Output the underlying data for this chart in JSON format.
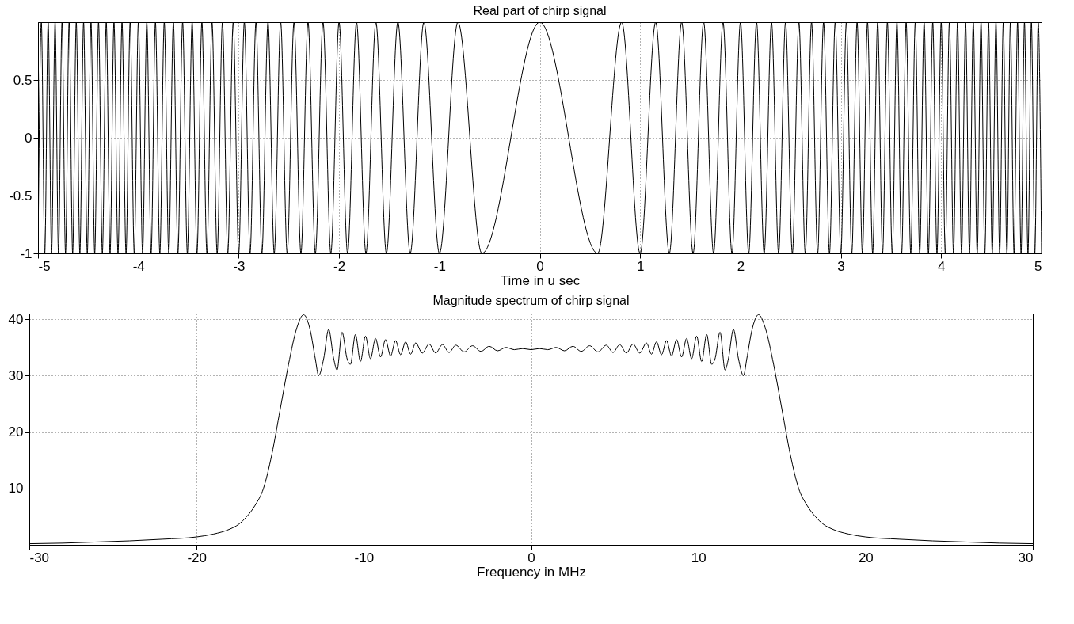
{
  "chart_data": [
    {
      "type": "line",
      "title": "Real part of chirp signal",
      "xlabel": "Time in u sec",
      "xlim": [
        -5,
        5
      ],
      "xticks": [
        -5,
        -4,
        -3,
        -2,
        -1,
        0,
        1,
        2,
        3,
        4,
        5
      ],
      "ylim": [
        -1,
        1
      ],
      "yticks": [
        -1,
        -0.5,
        0,
        0.5
      ],
      "grid": true,
      "x": [
        -5,
        -4.967,
        -4.933,
        -4.899,
        -4.865,
        -4.83,
        -4.796,
        -4.761,
        -4.726,
        -4.69,
        -4.655,
        -4.619,
        -4.583,
        -4.546,
        -4.509,
        -4.472,
        -4.435,
        -4.397,
        -4.359,
        -4.32,
        -4.282,
        -4.243,
        -4.203,
        -4.163,
        -4.123,
        -4.082,
        -4.041,
        -4,
        -3.958,
        -3.916,
        -3.873,
        -3.83,
        -3.786,
        -3.742,
        -3.697,
        -3.651,
        -3.606,
        -3.559,
        -3.512,
        -3.464,
        -3.416,
        -3.367,
        -3.317,
        -3.266,
        -3.215,
        -3.162,
        -3.109,
        -3.055,
        -3,
        -2.944,
        -2.887,
        -2.828,
        -2.769,
        -2.708,
        -2.646,
        -2.582,
        -2.517,
        -2.449,
        -2.38,
        -2.309,
        -2.236,
        -2.16,
        -2.082,
        -2,
        -1.915,
        -1.826,
        -1.732,
        -1.633,
        -1.528,
        -1.414,
        -1.291,
        -1.155,
        -1,
        -0.816,
        -0.577,
        0,
        0.577,
        0.816,
        1,
        1.155,
        1.291,
        1.414,
        1.528,
        1.633,
        1.732,
        1.826,
        1.915,
        2,
        2.082,
        2.16,
        2.236,
        2.309,
        2.38,
        2.449,
        2.517,
        2.582,
        2.646,
        2.708,
        2.769,
        2.828,
        2.887,
        2.944,
        3,
        3.055,
        3.109,
        3.162,
        3.215,
        3.266,
        3.317,
        3.367,
        3.416,
        3.464,
        3.512,
        3.559,
        3.606,
        3.651,
        3.697,
        3.742,
        3.786,
        3.83,
        3.873,
        3.916,
        3.958,
        4,
        4.041,
        4.082,
        4.123,
        4.163,
        4.203,
        4.243,
        4.282,
        4.32,
        4.359,
        4.397,
        4.435,
        4.472,
        4.509,
        4.546,
        4.583,
        4.619,
        4.655,
        4.69,
        4.726,
        4.761,
        4.796,
        4.83,
        4.865,
        4.899,
        4.933,
        4.967,
        5
      ],
      "series": [
        {
          "color": "#000000",
          "values": [
            -1,
            1,
            -1,
            1,
            -1,
            1,
            -1,
            1,
            -1,
            1,
            -1,
            1,
            -1,
            1,
            -1,
            1,
            -1,
            1,
            -1,
            1,
            -1,
            1,
            -1,
            1,
            -1,
            1,
            -1,
            1,
            -1,
            1,
            -1,
            1,
            -1,
            1,
            -1,
            1,
            -1,
            1,
            -1,
            1,
            -1,
            1,
            -1,
            1,
            -1,
            1,
            -1,
            1,
            -1,
            1,
            -1,
            1,
            -1,
            1,
            -1,
            1,
            -1,
            1,
            -1,
            1,
            -1,
            1,
            -1,
            1,
            -1,
            1,
            -1,
            1,
            -1,
            1,
            -1,
            1,
            -1,
            1,
            -1,
            1,
            -1,
            1,
            -1,
            1,
            -1,
            1,
            -1,
            1,
            -1,
            1,
            -1,
            1,
            -1,
            1,
            -1,
            1,
            -1,
            1,
            -1,
            1,
            -1,
            1,
            -1,
            1,
            -1,
            1,
            -1,
            1,
            -1,
            1,
            -1,
            1,
            -1,
            1,
            -1,
            1,
            -1,
            1,
            -1,
            1,
            -1,
            1,
            -1,
            1,
            -1,
            1,
            -1,
            1,
            -1,
            1,
            -1,
            1,
            -1,
            1,
            -1,
            1,
            -1,
            1,
            -1,
            1,
            -1,
            1,
            -1,
            1,
            -1,
            1,
            -1,
            1,
            -1,
            1,
            -1,
            1,
            -1,
            1,
            -1
          ]
        }
      ]
    },
    {
      "type": "line",
      "title": "Magnitude spectrum of chirp signal",
      "xlabel": "Frequency in MHz",
      "xlim": [
        -30,
        30
      ],
      "xticks": [
        -30,
        -20,
        -10,
        0,
        10,
        20,
        30
      ],
      "ylim": [
        0,
        41
      ],
      "yticks": [
        10,
        20,
        30,
        40
      ],
      "grid": true,
      "x": [
        -30,
        -28,
        -26,
        -24,
        -22,
        -20,
        -19,
        -18,
        -17.5,
        -17,
        -16.5,
        -16,
        -15.5,
        -15,
        -14.5,
        -14,
        -13.6,
        -13.2,
        -12.9,
        -12.7,
        -12.4,
        -12.1,
        -11.8,
        -11.6,
        -11.3,
        -11,
        -10.8,
        -10.5,
        -10.2,
        -9.9,
        -9.6,
        -9.3,
        -9,
        -8.7,
        -8.4,
        -8.1,
        -7.8,
        -7.5,
        -7.2,
        -6.9,
        -6.5,
        -6.1,
        -5.7,
        -5.3,
        -4.9,
        -4.5,
        -4,
        -3.5,
        -3,
        -2.5,
        -2,
        -1.5,
        -1,
        -0.5,
        0,
        0.5,
        1,
        1.5,
        2,
        2.5,
        3,
        3.5,
        4,
        4.5,
        4.9,
        5.3,
        5.7,
        6.1,
        6.5,
        6.9,
        7.2,
        7.5,
        7.8,
        8.1,
        8.4,
        8.7,
        9,
        9.3,
        9.6,
        9.9,
        10.2,
        10.5,
        10.8,
        11,
        11.3,
        11.6,
        11.8,
        12.1,
        12.4,
        12.7,
        12.9,
        13.2,
        13.6,
        14,
        14.5,
        15,
        15.5,
        16,
        16.5,
        17,
        17.5,
        18,
        19,
        20,
        22,
        24,
        26,
        28,
        30
      ],
      "series": [
        {
          "color": "#000000",
          "values": [
            0.2,
            0.3,
            0.5,
            0.7,
            1,
            1.4,
            1.9,
            2.8,
            3.6,
            5,
            7,
            10,
            16,
            24,
            32,
            38.5,
            40.8,
            38,
            33,
            30,
            33,
            38.2,
            33,
            31,
            37.7,
            33,
            32,
            37.3,
            32.5,
            37,
            33,
            36.6,
            33.3,
            36.4,
            33.5,
            36.2,
            33.7,
            36,
            33.8,
            35.8,
            34,
            35.6,
            34,
            35.5,
            34.1,
            35.4,
            34.2,
            35.3,
            34.3,
            35.2,
            34.4,
            35,
            34.6,
            34.8,
            34.6,
            34.8,
            34.6,
            35,
            34.4,
            35.2,
            34.3,
            35.3,
            34.2,
            35.4,
            34.1,
            35.5,
            34,
            35.6,
            34,
            35.8,
            33.8,
            36,
            33.7,
            36.2,
            33.5,
            36.4,
            33.3,
            36.6,
            33,
            37,
            32.5,
            37.3,
            32,
            33,
            37.7,
            31,
            33,
            38.2,
            33,
            30,
            33,
            38,
            40.8,
            38.5,
            32,
            24,
            16,
            10,
            7,
            5,
            3.6,
            2.8,
            1.9,
            1.4,
            1,
            0.7,
            0.5,
            0.3,
            0.2
          ]
        }
      ]
    }
  ]
}
